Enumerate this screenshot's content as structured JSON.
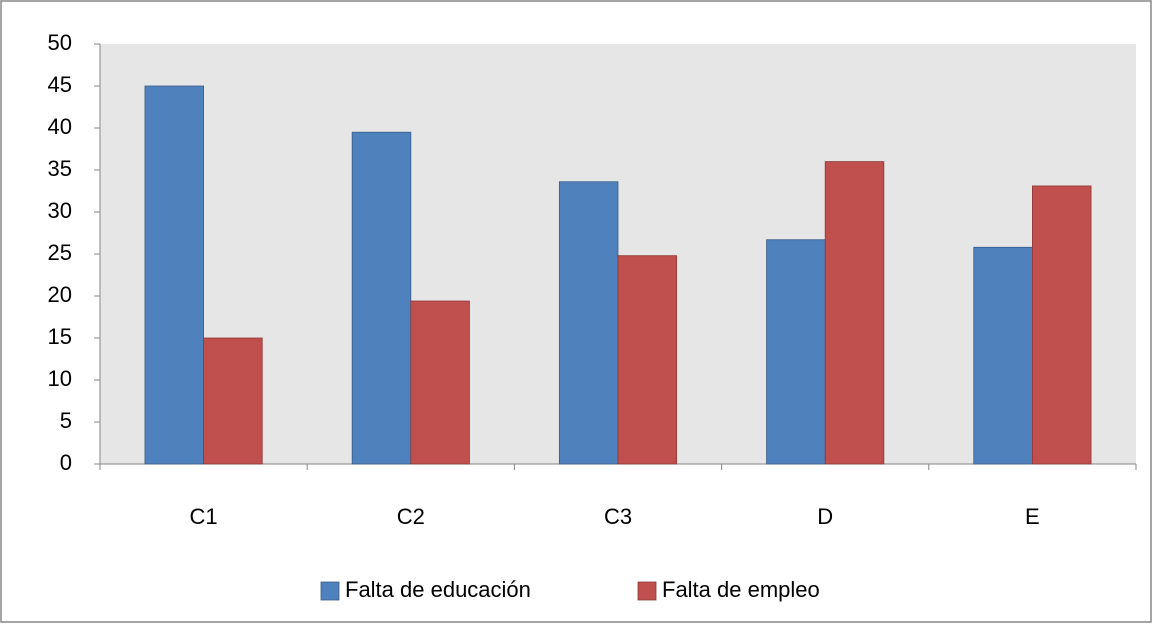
{
  "chart_data": {
    "type": "bar",
    "categories": [
      "C1",
      "C2",
      "C3",
      "D",
      "E"
    ],
    "series": [
      {
        "name": "Falta de educación",
        "color": "#4f81bd",
        "values": [
          45,
          39.5,
          33.6,
          26.7,
          25.8
        ]
      },
      {
        "name": "Falta de empleo",
        "color": "#c0504d",
        "values": [
          15,
          19.4,
          24.8,
          36,
          33.1
        ]
      }
    ],
    "ylim": [
      0,
      50
    ],
    "yticks": [
      0,
      5,
      10,
      15,
      20,
      25,
      30,
      35,
      40,
      45,
      50
    ],
    "grid": false,
    "legend": "bottom"
  }
}
